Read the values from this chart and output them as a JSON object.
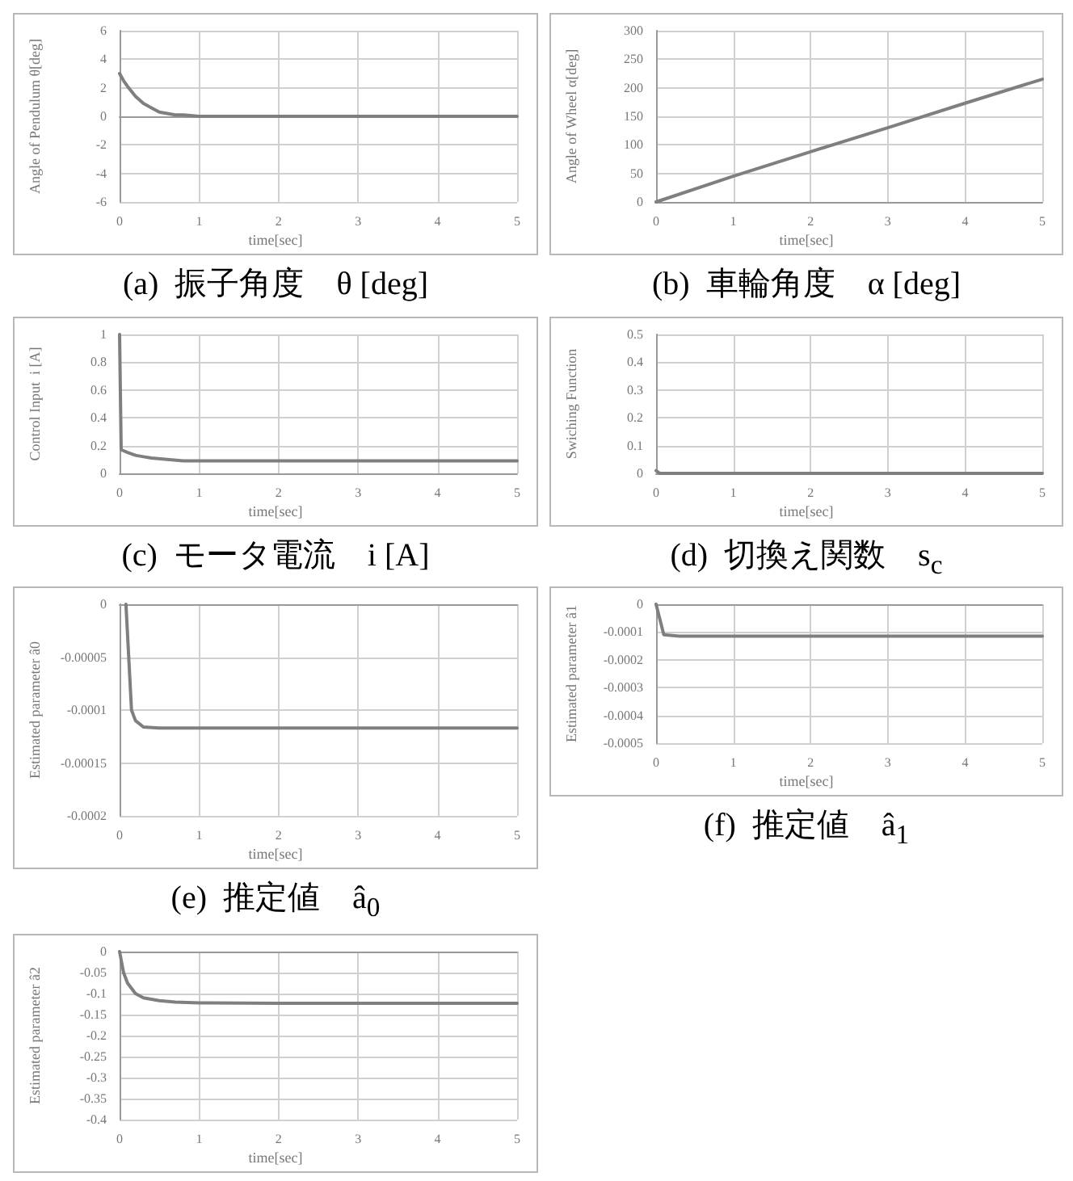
{
  "chart_data": [
    {
      "type": "line",
      "title": "(a)  振子角度　θ [deg]",
      "xlabel": "time[sec]",
      "ylabel": "Angle of Pendulum θ[deg]",
      "xlim": [
        0,
        5
      ],
      "xticks": [
        0,
        1,
        2,
        3,
        4,
        5
      ],
      "ylim": [
        -6,
        6
      ],
      "yticks": [
        -6,
        -4,
        -2,
        0,
        2,
        4,
        6
      ],
      "grid": true,
      "color": "#7f7f7f",
      "x": [
        0,
        0.05,
        0.1,
        0.2,
        0.3,
        0.4,
        0.5,
        0.6,
        0.7,
        0.8,
        1,
        1.5,
        2,
        3,
        4,
        5
      ],
      "values": [
        3,
        2.5,
        2.1,
        1.4,
        0.9,
        0.6,
        0.3,
        0.2,
        0.1,
        0.1,
        0,
        0,
        0,
        0,
        0,
        0
      ]
    },
    {
      "type": "line",
      "title": "(b)  車輪角度　α [deg]",
      "xlabel": "time[sec]",
      "ylabel": "Angle of Wheel α[deg]",
      "xlim": [
        0,
        5
      ],
      "xticks": [
        0,
        1,
        2,
        3,
        4,
        5
      ],
      "ylim": [
        0,
        300
      ],
      "yticks": [
        0,
        50,
        100,
        150,
        200,
        250,
        300
      ],
      "grid": true,
      "color": "#7f7f7f",
      "x": [
        0,
        1,
        2,
        3,
        4,
        5
      ],
      "values": [
        0,
        45,
        88,
        130,
        173,
        215
      ]
    },
    {
      "type": "line",
      "title": "(c)  モータ電流　i [A]",
      "xlabel": "time[sec]",
      "ylabel": "Control Input  i [A]",
      "xlim": [
        0,
        5
      ],
      "xticks": [
        0,
        1,
        2,
        3,
        4,
        5
      ],
      "ylim": [
        0,
        1
      ],
      "yticks": [
        0,
        0.2,
        0.4,
        0.6,
        0.8,
        1
      ],
      "grid": true,
      "color": "#7f7f7f",
      "x": [
        0,
        0.02,
        0.1,
        0.2,
        0.3,
        0.4,
        0.6,
        0.8,
        1,
        2,
        3,
        4,
        5
      ],
      "values": [
        1,
        0.17,
        0.15,
        0.13,
        0.12,
        0.11,
        0.1,
        0.09,
        0.09,
        0.09,
        0.09,
        0.09,
        0.09
      ]
    },
    {
      "type": "line",
      "title": "(d)  切換え関数　s$_{c}$",
      "xlabel": "time[sec]",
      "ylabel": "Swiching Function",
      "xlim": [
        0,
        5
      ],
      "xticks": [
        0,
        1,
        2,
        3,
        4,
        5
      ],
      "ylim": [
        0,
        0.5
      ],
      "yticks": [
        0,
        0.1,
        0.2,
        0.3,
        0.4,
        0.5
      ],
      "grid": true,
      "color": "#7f7f7f",
      "x": [
        0,
        0.05,
        1,
        2,
        3,
        4,
        5
      ],
      "values": [
        0.01,
        0,
        0,
        0,
        0,
        0,
        0
      ]
    },
    {
      "type": "line",
      "title": "(e)  推定値　â$_{0}$",
      "xlabel": "time[sec]",
      "ylabel": "Estimated parameter â0",
      "xlim": [
        0,
        5
      ],
      "xticks": [
        0,
        1,
        2,
        3,
        4,
        5
      ],
      "ylim": [
        -0.0002,
        0
      ],
      "yticks": [
        -0.0002,
        -0.00015,
        -0.0001,
        {
          "value": -5e-05,
          "label": "-0.00005"
        },
        0
      ],
      "grid": true,
      "color": "#7f7f7f",
      "x": [
        0.08,
        0.15,
        0.2,
        0.3,
        0.5,
        1,
        2,
        3,
        4,
        5
      ],
      "values": [
        0,
        -0.0001,
        -0.00011,
        -0.000116,
        -0.000117,
        -0.000117,
        -0.000117,
        -0.000117,
        -0.000117,
        -0.000117
      ]
    },
    {
      "type": "line",
      "title": "(f)  推定値　â$_{1}$",
      "xlabel": "time[sec]",
      "ylabel": "Estimated parameter â1",
      "xlim": [
        0,
        5
      ],
      "xticks": [
        0,
        1,
        2,
        3,
        4,
        5
      ],
      "ylim": [
        -0.0005,
        0
      ],
      "yticks": [
        -0.0005,
        -0.0004,
        -0.0003,
        -0.0002,
        -0.0001,
        0
      ],
      "grid": true,
      "color": "#7f7f7f",
      "x": [
        0,
        0.1,
        0.3,
        1,
        2,
        3,
        4,
        5
      ],
      "values": [
        0,
        -0.00011,
        -0.000115,
        -0.000115,
        -0.000115,
        -0.000115,
        -0.000115,
        -0.000115
      ]
    },
    {
      "type": "line",
      "xlabel": "time[sec]",
      "ylabel": "Estimated parameter â2",
      "xlim": [
        0,
        5
      ],
      "xticks": [
        0,
        1,
        2,
        3,
        4,
        5
      ],
      "ylim": [
        -0.4,
        0
      ],
      "yticks": [
        -0.4,
        -0.35,
        -0.3,
        -0.25,
        -0.2,
        -0.15,
        -0.1,
        -0.05,
        0
      ],
      "grid": true,
      "color": "#7f7f7f",
      "x": [
        0,
        0.05,
        0.1,
        0.2,
        0.3,
        0.5,
        0.7,
        1,
        2,
        3,
        4,
        5
      ],
      "values": [
        0,
        -0.05,
        -0.075,
        -0.1,
        -0.11,
        -0.117,
        -0.12,
        -0.122,
        -0.123,
        -0.123,
        -0.123,
        -0.123
      ]
    }
  ]
}
